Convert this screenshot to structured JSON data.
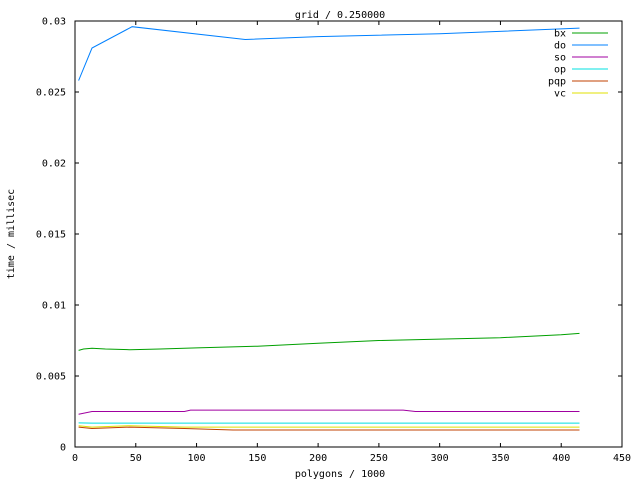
{
  "chart_data": {
    "type": "line",
    "title": "grid / 0.250000",
    "xlabel": "polygons / 1000",
    "ylabel": "time / millisec",
    "xlim": [
      0,
      450
    ],
    "ylim": [
      0,
      0.03
    ],
    "xticks": [
      0,
      50,
      100,
      150,
      200,
      250,
      300,
      350,
      400,
      450
    ],
    "yticks": [
      0,
      0.005,
      0.01,
      0.015,
      0.02,
      0.025,
      0.03
    ],
    "xtick_labels": [
      "0",
      "50",
      "100",
      "150",
      "200",
      "250",
      "300",
      "350",
      "400",
      "450"
    ],
    "ytick_labels": [
      "0",
      "0.005",
      "0.01",
      "0.015",
      "0.02",
      "0.025",
      "0.03"
    ],
    "grid": false,
    "legend": "top-right",
    "series": [
      {
        "name": "bx",
        "color": "#00a000",
        "points": [
          [
            3,
            0.0068
          ],
          [
            7,
            0.0069
          ],
          [
            14,
            0.00695
          ],
          [
            25,
            0.0069
          ],
          [
            45,
            0.00685
          ],
          [
            70,
            0.0069
          ],
          [
            100,
            0.00698
          ],
          [
            150,
            0.0071
          ],
          [
            200,
            0.0073
          ],
          [
            250,
            0.0075
          ],
          [
            300,
            0.0076
          ],
          [
            350,
            0.0077
          ],
          [
            400,
            0.0079
          ],
          [
            415,
            0.008
          ]
        ]
      },
      {
        "name": "do",
        "color": "#0080ff",
        "points": [
          [
            3,
            0.0258
          ],
          [
            14,
            0.0281
          ],
          [
            47,
            0.0296
          ],
          [
            140,
            0.0287
          ],
          [
            200,
            0.0289
          ],
          [
            300,
            0.0291
          ],
          [
            415,
            0.0295
          ]
        ]
      },
      {
        "name": "so",
        "color": "#a000a0",
        "points": [
          [
            3,
            0.0023
          ],
          [
            14,
            0.0025
          ],
          [
            45,
            0.0025
          ],
          [
            90,
            0.0025
          ],
          [
            95,
            0.0026
          ],
          [
            270,
            0.0026
          ],
          [
            280,
            0.0025
          ],
          [
            415,
            0.0025
          ]
        ]
      },
      {
        "name": "op",
        "color": "#00e0e0",
        "points": [
          [
            3,
            0.0017
          ],
          [
            14,
            0.00168
          ],
          [
            100,
            0.00168
          ],
          [
            200,
            0.00168
          ],
          [
            300,
            0.00168
          ],
          [
            415,
            0.00168
          ]
        ]
      },
      {
        "name": "pqp",
        "color": "#c04000",
        "points": [
          [
            3,
            0.0014
          ],
          [
            14,
            0.0013
          ],
          [
            45,
            0.0014
          ],
          [
            90,
            0.0013
          ],
          [
            130,
            0.0012
          ],
          [
            300,
            0.0012
          ],
          [
            415,
            0.0012
          ]
        ]
      },
      {
        "name": "vc",
        "color": "#e0e000",
        "points": [
          [
            3,
            0.0015
          ],
          [
            14,
            0.0014
          ],
          [
            45,
            0.0015
          ],
          [
            90,
            0.0014
          ],
          [
            130,
            0.0014
          ],
          [
            300,
            0.0014
          ],
          [
            415,
            0.0014
          ]
        ]
      }
    ]
  }
}
